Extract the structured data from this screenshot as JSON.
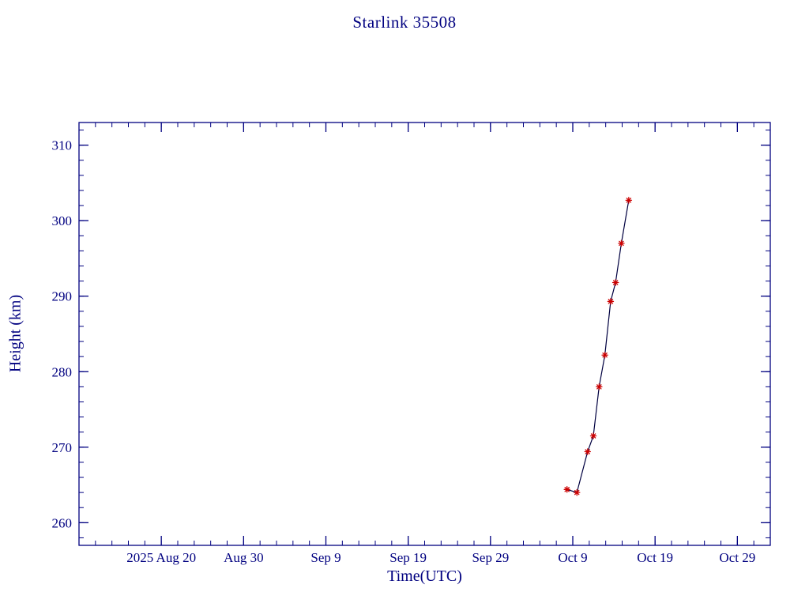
{
  "chart_data": {
    "type": "line",
    "title": "Starlink 35508",
    "xlabel": "Time(UTC)",
    "ylabel": "Height (km)",
    "x_unit": "days since 2025 Aug 10 (estimated axis origin)",
    "x_domain_days": [
      0,
      84
    ],
    "ylim": [
      257,
      313
    ],
    "x_major_ticks": [
      {
        "x_day": 10,
        "label": "2025 Aug 20"
      },
      {
        "x_day": 20,
        "label": "Aug 30"
      },
      {
        "x_day": 30,
        "label": "Sep 9"
      },
      {
        "x_day": 40,
        "label": "Sep 19"
      },
      {
        "x_day": 50,
        "label": "Sep 29"
      },
      {
        "x_day": 60,
        "label": "Oct 9"
      },
      {
        "x_day": 70,
        "label": "Oct 19"
      },
      {
        "x_day": 80,
        "label": "Oct 29"
      }
    ],
    "x_minor_step": 2,
    "y_major_ticks": [
      260,
      270,
      280,
      290,
      300,
      310
    ],
    "y_minor_step": 2,
    "grid": false,
    "legend": "none",
    "axis_color": "#000080",
    "text_color": "#000080",
    "series": [
      {
        "name": "height",
        "line_color": "#000040",
        "marker": "asterisk",
        "marker_color": "#cc0000",
        "points": [
          {
            "x_day": 59.3,
            "height_km": 264.4
          },
          {
            "x_day": 60.5,
            "height_km": 264.0
          },
          {
            "x_day": 61.8,
            "height_km": 269.4
          },
          {
            "x_day": 62.5,
            "height_km": 271.5
          },
          {
            "x_day": 63.2,
            "height_km": 278.0
          },
          {
            "x_day": 63.9,
            "height_km": 282.2
          },
          {
            "x_day": 64.6,
            "height_km": 289.3
          },
          {
            "x_day": 65.2,
            "height_km": 291.8
          },
          {
            "x_day": 65.9,
            "height_km": 297.0
          },
          {
            "x_day": 66.8,
            "height_km": 302.7
          }
        ]
      }
    ]
  }
}
